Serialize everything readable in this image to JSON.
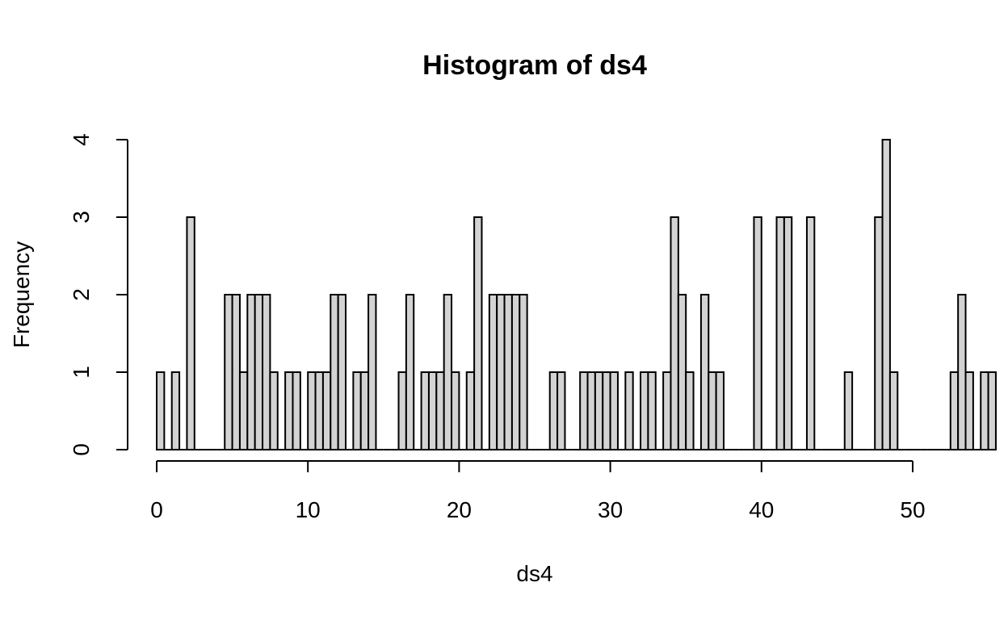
{
  "chart_data": {
    "type": "bar",
    "title": "Histogram of ds4",
    "xlabel": "ds4",
    "ylabel": "Frequency",
    "xlim": [
      0,
      50
    ],
    "ylim": [
      0,
      4
    ],
    "bin_width": 0.5,
    "bin_start": 0,
    "x_ticks": [
      "0",
      "10",
      "20",
      "30",
      "40",
      "50"
    ],
    "y_ticks": [
      "0",
      "1",
      "2",
      "3",
      "4"
    ],
    "values": [
      1,
      0,
      1,
      0,
      3,
      0,
      0,
      0,
      0,
      2,
      2,
      1,
      2,
      2,
      2,
      1,
      0,
      1,
      1,
      0,
      1,
      1,
      1,
      2,
      2,
      0,
      1,
      1,
      2,
      0,
      0,
      0,
      1,
      2,
      0,
      1,
      1,
      1,
      2,
      1,
      0,
      1,
      3,
      0,
      2,
      2,
      2,
      2,
      2,
      0,
      0,
      0,
      1,
      1,
      0,
      0,
      1,
      1,
      1,
      1,
      1,
      0,
      1,
      0,
      1,
      1,
      0,
      1,
      3,
      2,
      1,
      0,
      2,
      1,
      1,
      0,
      0,
      0,
      0,
      3,
      0,
      0,
      3,
      3,
      0,
      0,
      3,
      0,
      0,
      0,
      0,
      1,
      0,
      0,
      0,
      3,
      4,
      1,
      0,
      0,
      0,
      0,
      0,
      0,
      0,
      1,
      2,
      1,
      0,
      1,
      1
    ],
    "grid": false,
    "bar_color": "#d3d3d3",
    "edge_color": "#000000"
  }
}
